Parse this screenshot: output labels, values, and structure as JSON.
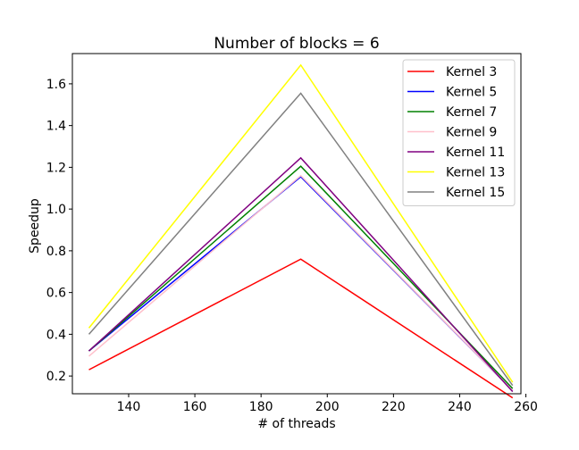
{
  "chart_data": {
    "type": "line",
    "title": "Number of blocks = 6",
    "xlabel": "# of threads",
    "ylabel": "Speedup",
    "x": [
      128,
      192,
      256
    ],
    "xlim": [
      123,
      258.5
    ],
    "ylim": [
      0.115,
      1.745
    ],
    "xticks": [
      140,
      160,
      180,
      200,
      220,
      240,
      260
    ],
    "yticks": [
      0.2,
      0.4,
      0.6,
      0.8,
      1.0,
      1.2,
      1.4,
      1.6
    ],
    "xtick_labels": [
      "140",
      "160",
      "180",
      "200",
      "220",
      "240",
      "260"
    ],
    "ytick_labels": [
      "0.2",
      "0.4",
      "0.6",
      "0.8",
      "1.0",
      "1.2",
      "1.4",
      "1.6"
    ],
    "grid": false,
    "legend_position": "top-right",
    "series": [
      {
        "name": "Kernel 3",
        "color": "#ff0000",
        "values": [
          0.23,
          0.76,
          0.095
        ]
      },
      {
        "name": "Kernel 5",
        "color": "#0000ff",
        "values": [
          0.32,
          1.155,
          0.13
        ]
      },
      {
        "name": "Kernel 7",
        "color": "#008000",
        "values": [
          0.32,
          1.205,
          0.14
        ]
      },
      {
        "name": "Kernel 9",
        "color": "#ffc0cb",
        "values": [
          0.295,
          1.16,
          0.13
        ]
      },
      {
        "name": "Kernel 11",
        "color": "#800080",
        "values": [
          0.32,
          1.245,
          0.125
        ]
      },
      {
        "name": "Kernel 13",
        "color": "#ffff00",
        "values": [
          0.43,
          1.69,
          0.17
        ]
      },
      {
        "name": "Kernel 15",
        "color": "#808080",
        "values": [
          0.4,
          1.555,
          0.155
        ]
      }
    ]
  }
}
